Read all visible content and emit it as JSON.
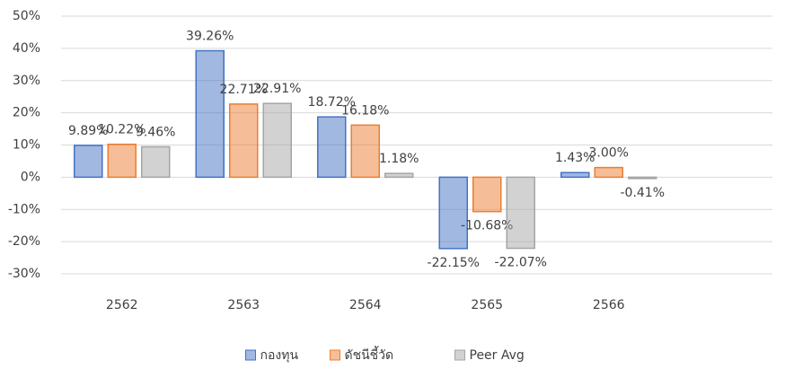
{
  "chart_data": {
    "type": "bar",
    "categories": [
      "2562",
      "2563",
      "2564",
      "2565",
      "2566"
    ],
    "series": [
      {
        "name": "กองทุน",
        "color": "#4472c4",
        "values": [
          9.89,
          39.26,
          18.72,
          -22.15,
          1.43
        ],
        "value_labels": [
          "9.89%",
          "39.26%",
          "18.72%",
          "-22.15%",
          "1.43%"
        ]
      },
      {
        "name": "ดัชนีชี้วัด",
        "color": "#ed7d31",
        "values": [
          10.22,
          22.71,
          16.18,
          -10.68,
          3.0
        ],
        "value_labels": [
          "10.22%",
          "22.71%",
          "16.18%",
          "-10.68%",
          "3.00%"
        ]
      },
      {
        "name": "Peer Avg",
        "color": "#a5a5a5",
        "values": [
          9.46,
          22.91,
          1.18,
          -22.07,
          -0.41
        ],
        "value_labels": [
          "9.46%",
          "22.91%",
          "1.18%",
          "-22.07%",
          "-0.41%"
        ]
      }
    ],
    "ylim": [
      -30,
      50
    ],
    "yticks": [
      {
        "value": -30,
        "label": "-30%"
      },
      {
        "value": -20,
        "label": "-20%"
      },
      {
        "value": -10,
        "label": "-10%"
      },
      {
        "value": 0,
        "label": "0%"
      },
      {
        "value": 10,
        "label": "10%"
      },
      {
        "value": 20,
        "label": "20%"
      },
      {
        "value": 30,
        "label": "30%"
      },
      {
        "value": 40,
        "label": "40%"
      },
      {
        "value": 50,
        "label": "50%"
      }
    ],
    "grid": true,
    "legend": "bottom"
  }
}
